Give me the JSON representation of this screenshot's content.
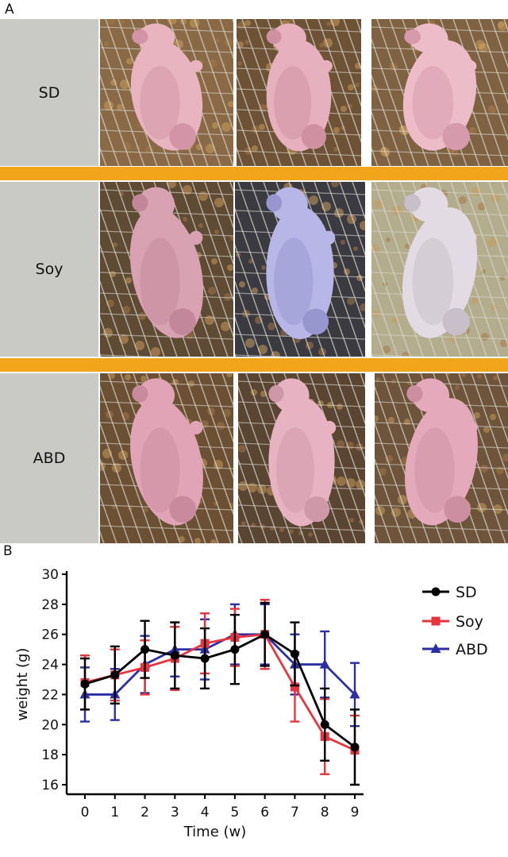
{
  "panel_a": {
    "letter": "A",
    "rows": [
      {
        "label": "SD"
      },
      {
        "label": "Soy"
      },
      {
        "label": "ABD"
      }
    ]
  },
  "panel_b": {
    "letter": "B"
  },
  "colors": {
    "sd": "#000000",
    "soy": "#e8343f",
    "abd": "#2b2fa3",
    "separator": "#f2a51a"
  },
  "chart_data": {
    "type": "line",
    "xlabel": "Time (w)",
    "ylabel": "weight (g)",
    "x": [
      0,
      1,
      2,
      3,
      4,
      5,
      6,
      7,
      8,
      9
    ],
    "xlim": [
      0,
      9
    ],
    "ylim": [
      16,
      30
    ],
    "yticks": [
      16,
      18,
      20,
      22,
      24,
      26,
      28,
      30
    ],
    "legend_position": "top-right",
    "grid": false,
    "series": [
      {
        "name": "SD",
        "marker": "circle",
        "values": [
          22.7,
          23.3,
          25.0,
          24.6,
          24.4,
          25.0,
          26.0,
          24.7,
          20.0,
          18.5
        ],
        "errors": [
          1.7,
          1.9,
          1.9,
          2.2,
          2.0,
          2.3,
          2.1,
          2.1,
          2.4,
          2.5
        ]
      },
      {
        "name": "Soy",
        "marker": "square",
        "values": [
          22.8,
          23.3,
          23.8,
          24.4,
          25.4,
          25.8,
          26.0,
          22.5,
          19.2,
          18.3
        ],
        "errors": [
          1.8,
          1.7,
          1.8,
          2.1,
          2.0,
          1.9,
          2.3,
          2.3,
          2.5,
          2.3
        ]
      },
      {
        "name": "ABD",
        "marker": "triangle",
        "values": [
          22.0,
          22.0,
          24.0,
          25.0,
          25.0,
          26.0,
          26.0,
          24.0,
          24.0,
          22.0
        ],
        "errors": [
          1.8,
          1.7,
          1.9,
          1.8,
          2.0,
          2.0,
          2.0,
          2.0,
          2.2,
          2.1
        ]
      }
    ]
  }
}
